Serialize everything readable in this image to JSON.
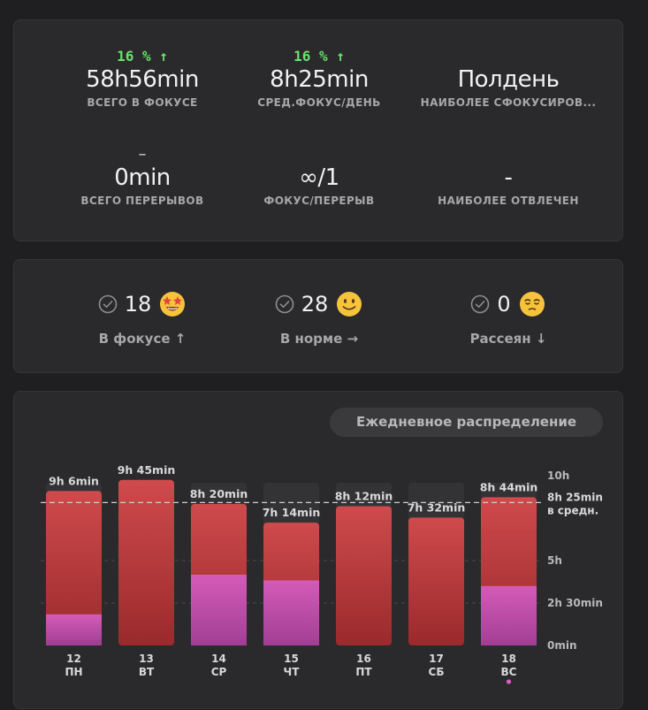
{
  "stats": [
    {
      "delta": "16 % ↑",
      "value": "58h56min",
      "label": "ВСЕГО В ФОКУСЕ"
    },
    {
      "delta": "16 % ↑",
      "value": "8h25min",
      "label": "СРЕД.ФОКУС/ДЕНЬ"
    },
    {
      "delta": "",
      "value": "Полдень",
      "label": "НАИБОЛЕЕ СФОКУСИРОВ..."
    },
    {
      "delta": "–",
      "value": "0min",
      "label": "ВСЕГО ПЕРЕРЫВОВ"
    },
    {
      "delta": "",
      "value": "∞/1",
      "label": "ФОКУС/ПЕРЕРЫВ"
    },
    {
      "delta": "",
      "value": "-",
      "label": "НАИБОЛЕЕ ОТВЛЕЧЕН"
    }
  ],
  "moods": [
    {
      "count": "18",
      "label": "В фокусе ↑",
      "icon": "star-struck-emoji-icon"
    },
    {
      "count": "28",
      "label": "В норме →",
      "icon": "slight-smile-emoji-icon"
    },
    {
      "count": "0",
      "label": "Рассеян ↓",
      "icon": "pensive-emoji-icon"
    }
  ],
  "chart_toggle": "Ежедневное распределение",
  "colors": {
    "accent_green": "#67e36a",
    "bar_red": "#cf4a4c",
    "bar_pink": "#d45bb8",
    "today_dot": "#e05ac3"
  },
  "chart_data": {
    "type": "bar",
    "stacked": true,
    "unit": "minutes",
    "categories": [
      {
        "day": "12",
        "weekday": "ПН"
      },
      {
        "day": "13",
        "weekday": "ВТ"
      },
      {
        "day": "14",
        "weekday": "СР"
      },
      {
        "day": "15",
        "weekday": "ЧТ"
      },
      {
        "day": "16",
        "weekday": "ПТ"
      },
      {
        "day": "17",
        "weekday": "СБ"
      },
      {
        "day": "18",
        "weekday": "ВС"
      }
    ],
    "totals": [
      546,
      585,
      500,
      434,
      492,
      452,
      524
    ],
    "pink_values": [
      110,
      0,
      250,
      230,
      0,
      0,
      210
    ],
    "bar_labels": [
      "9h 6min",
      "9h 45min",
      "8h 20min",
      "7h 14min",
      "8h 12min",
      "7h 32min",
      "8h 44min"
    ],
    "ylim": [
      0,
      600
    ],
    "y_ticks": [
      {
        "value": 600,
        "label": "10h"
      },
      {
        "value": 300,
        "label": "5h"
      },
      {
        "value": 150,
        "label": "2h 30min"
      },
      {
        "value": 0,
        "label": "0min"
      }
    ],
    "average": {
      "value": 505,
      "label": "8h 25min",
      "sublabel": "в средн."
    },
    "today_index": 6
  }
}
